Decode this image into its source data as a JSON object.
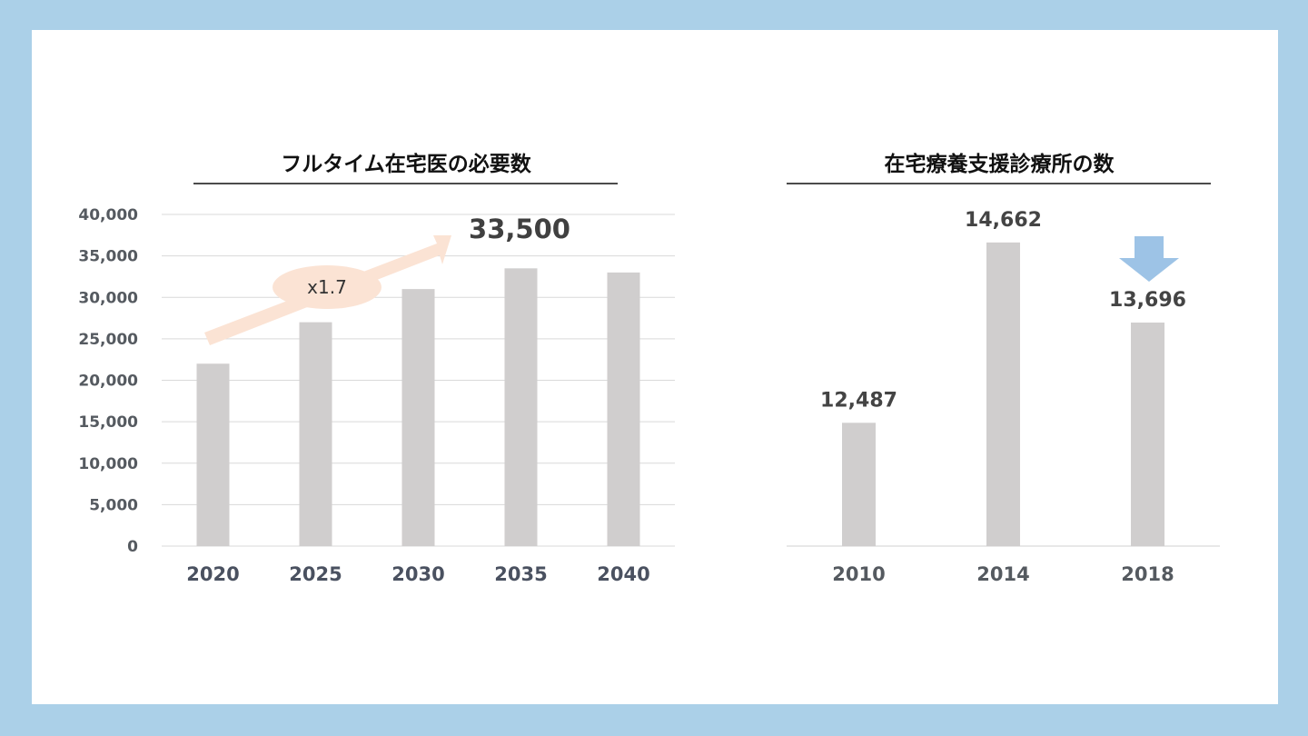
{
  "chart_data": [
    {
      "type": "bar",
      "title": "フルタイム在宅医の必要数",
      "categories": [
        "2020",
        "2025",
        "2030",
        "2035",
        "2040"
      ],
      "values": [
        22000,
        27000,
        31000,
        33500,
        33000
      ],
      "ylim": [
        0,
        40000
      ],
      "yticks": [
        "0",
        "5,000",
        "10,000",
        "15,000",
        "20,000",
        "25,000",
        "30,000",
        "35,000",
        "40,000"
      ],
      "ytick_values": [
        0,
        5000,
        10000,
        15000,
        20000,
        25000,
        30000,
        35000,
        40000
      ],
      "grid": true,
      "bar_color": "#d0cece",
      "annotations": {
        "peak_label": "33,500",
        "growth_label": "x1.7",
        "arrow_color": "#fbe3d4"
      }
    },
    {
      "type": "bar",
      "title": "在宅療養支援診療所の数",
      "categories": [
        "2010",
        "2014",
        "2018"
      ],
      "values": [
        12487,
        14662,
        13696
      ],
      "data_labels": [
        "12,487",
        "14,662",
        "13,696"
      ],
      "ylim": [
        11000,
        15000
      ],
      "grid": false,
      "bar_color": "#d0cece",
      "annotations": {
        "down_arrow_color": "#9dc3e6"
      }
    }
  ]
}
